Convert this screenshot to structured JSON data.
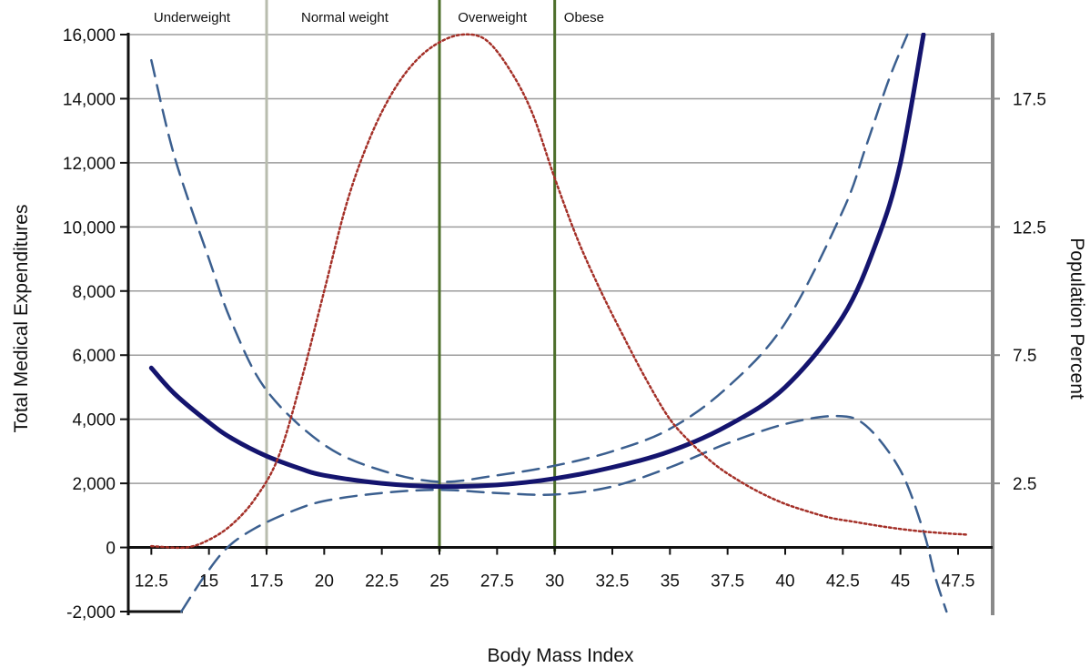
{
  "chart_data": {
    "type": "line",
    "xlabel": "Body Mass Index",
    "ylabel": "Total Medical Expenditures",
    "y2label": "Population Percent",
    "xlim": [
      11.5,
      49
    ],
    "ylim": [
      -2000,
      16000
    ],
    "y2lim": [
      0,
      20
    ],
    "x_ticks": [
      {
        "value": 12.5,
        "label": "12.5"
      },
      {
        "value": 15,
        "label": "15"
      },
      {
        "value": 17.5,
        "label": "17.5"
      },
      {
        "value": 20,
        "label": "20"
      },
      {
        "value": 22.5,
        "label": "22.5"
      },
      {
        "value": 25,
        "label": "25"
      },
      {
        "value": 27.5,
        "label": "27.5"
      },
      {
        "value": 30,
        "label": "30"
      },
      {
        "value": 32.5,
        "label": "32.5"
      },
      {
        "value": 35,
        "label": "35"
      },
      {
        "value": 37.5,
        "label": "37.5"
      },
      {
        "value": 40,
        "label": "40"
      },
      {
        "value": 42.5,
        "label": "42.5"
      },
      {
        "value": 45,
        "label": "45"
      },
      {
        "value": 47.5,
        "label": "47.5"
      }
    ],
    "y_ticks": [
      {
        "value": 16000,
        "label": "16,000"
      },
      {
        "value": 14000,
        "label": "14,000"
      },
      {
        "value": 12000,
        "label": "12,000"
      },
      {
        "value": 10000,
        "label": "10,000"
      },
      {
        "value": 8000,
        "label": "8,000"
      },
      {
        "value": 6000,
        "label": "6,000"
      },
      {
        "value": 4000,
        "label": "4,000"
      },
      {
        "value": 2000,
        "label": "2,000"
      },
      {
        "value": 0,
        "label": "0"
      },
      {
        "value": -2000,
        "label": "-2,000"
      }
    ],
    "y2_ticks": [
      {
        "value": 17.5,
        "label": "17.5"
      },
      {
        "value": 12.5,
        "label": "12.5"
      },
      {
        "value": 7.5,
        "label": "7.5"
      },
      {
        "value": 2.5,
        "label": "2.5"
      }
    ],
    "gridlines": [
      16000,
      14000,
      12000,
      10000,
      8000,
      6000,
      4000,
      2000
    ],
    "category_bands": [
      {
        "label": "Underweight",
        "label_at": 12.6
      },
      {
        "label": "Normal weight",
        "label_at": 19.0
      },
      {
        "label": "Overweight",
        "label_at": 25.8
      },
      {
        "label": "Obese",
        "label_at": 30.4
      }
    ],
    "band_boundaries": [
      {
        "x": 17.5,
        "color": "#b8bcae"
      },
      {
        "x": 25,
        "color": "#4c6e2a"
      },
      {
        "x": 30,
        "color": "#4c6e2a"
      }
    ],
    "series": [
      {
        "style": "solid",
        "color": "#14146e",
        "axis": "left",
        "x": [
          12.5,
          13.5,
          15,
          16,
          17.5,
          19,
          20,
          22.5,
          25,
          27.5,
          30,
          32.5,
          35,
          37.5,
          40,
          42.5,
          44,
          45,
          46
        ],
        "y": [
          5600,
          4800,
          3900,
          3400,
          2850,
          2450,
          2250,
          2000,
          1900,
          1950,
          2150,
          2500,
          3000,
          3800,
          5000,
          7200,
          9600,
          12000,
          16000
        ]
      },
      {
        "style": "dashed",
        "color": "#3b5f8f",
        "axis": "left",
        "x": [
          12.5,
          13.5,
          15,
          16,
          17.5,
          20,
          22.5,
          25,
          27.5,
          30,
          32.5,
          35,
          37.5,
          40,
          42.5,
          43.5,
          44.5,
          45.3
        ],
        "y": [
          15200,
          12200,
          9000,
          7000,
          4900,
          3200,
          2400,
          2050,
          2250,
          2550,
          3000,
          3700,
          5000,
          7000,
          10500,
          12500,
          14600,
          16000
        ]
      },
      {
        "style": "dashed",
        "color": "#3b5f8f",
        "axis": "left",
        "x": [
          13.8,
          14.8,
          15.8,
          17,
          18.5,
          20,
          22.5,
          25,
          27.5,
          30,
          32.5,
          35,
          37.5,
          40,
          42.2,
          43.5,
          45,
          46,
          46.5,
          47
        ],
        "y": [
          -2000,
          -900,
          0,
          600,
          1100,
          1450,
          1700,
          1800,
          1700,
          1650,
          1900,
          2500,
          3250,
          3850,
          4100,
          3800,
          2400,
          500,
          -900,
          -2000
        ]
      },
      {
        "style": "dotted",
        "color": "#a43028",
        "axis": "right",
        "x": [
          12.5,
          14,
          15,
          16,
          17,
          18,
          19,
          20,
          21,
          22,
          23,
          24,
          25,
          26,
          27,
          28,
          29,
          30,
          31,
          32,
          33,
          34,
          35,
          36,
          37,
          38,
          39,
          40,
          41,
          42,
          43,
          44,
          45,
          46,
          47,
          47.9
        ],
        "y": [
          0.05,
          0.0,
          0.3,
          0.9,
          1.9,
          3.5,
          6.5,
          10.0,
          13.5,
          16.0,
          17.8,
          19.0,
          19.7,
          20.0,
          19.8,
          18.7,
          17.0,
          14.4,
          12.0,
          10.0,
          8.2,
          6.5,
          5.0,
          4.0,
          3.2,
          2.6,
          2.1,
          1.7,
          1.4,
          1.15,
          1.0,
          0.85,
          0.72,
          0.62,
          0.55,
          0.5
        ]
      }
    ]
  }
}
